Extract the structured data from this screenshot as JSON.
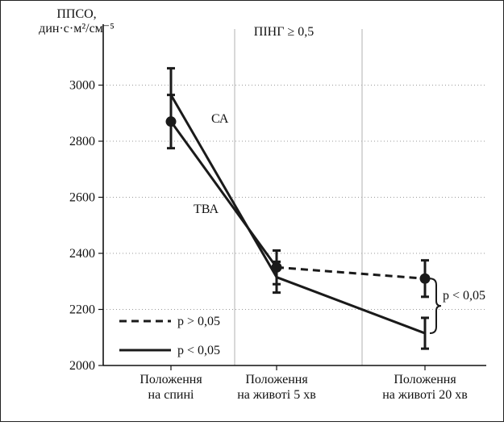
{
  "chart_data": {
    "type": "line",
    "ylabel_line1": "ППСО,",
    "ylabel_line2": "дин·с·м²/см⁻⁵",
    "subtitle": "ПІНГ ≥ 0,5",
    "categories": [
      [
        "Положення",
        "на спині"
      ],
      [
        "Положення",
        "на животі 5 хв"
      ],
      [
        "Положення",
        "на животі 20 хв"
      ]
    ],
    "ylim": [
      2000,
      3200
    ],
    "yticks": [
      2000,
      2200,
      2400,
      2600,
      2800,
      3000
    ],
    "grid": true,
    "series": [
      {
        "name": "СА",
        "values": [
          2870,
          2350,
          2310
        ],
        "errors": [
          95,
          60,
          65
        ],
        "style": "mixed",
        "marker": "circle"
      },
      {
        "name": "ТВА",
        "values": [
          2965,
          2315,
          2115
        ],
        "errors": [
          95,
          55,
          55
        ],
        "style": "solid",
        "marker": "none"
      }
    ],
    "annotations": {
      "series_labels": [
        "СА",
        "ТВА"
      ],
      "bracket_label": "p < 0,05"
    },
    "legend": {
      "placement": "bottom-left",
      "entries": [
        {
          "label": "p > 0,05",
          "style": "dashed"
        },
        {
          "label": "p < 0,05",
          "style": "solid"
        }
      ]
    },
    "line_color": "#1a1a1a"
  }
}
